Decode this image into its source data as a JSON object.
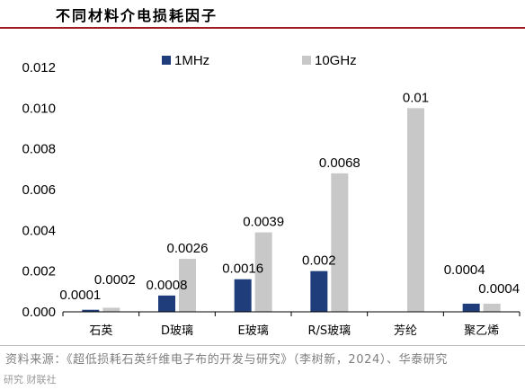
{
  "title": "不同材料介电损耗因子",
  "source": "资料来源：《超低损耗石英纤维电子布的开发与研究》（李树新，2024）、华泰研究",
  "watermark": "研究 财联社",
  "colors": {
    "series_1mhz": "#1f3d7a",
    "series_10ghz": "#c8c8c8",
    "title_rule": "#9e1b1f"
  },
  "chart_data": {
    "type": "bar",
    "categories": [
      "石英",
      "D玻璃",
      "E玻璃",
      "R/S玻璃",
      "芳纶",
      "聚乙烯"
    ],
    "series": [
      {
        "name": "1MHz",
        "values": [
          0.0001,
          0.0008,
          0.0016,
          0.002,
          null,
          0.0004
        ],
        "labels": [
          "0.0001",
          "0.0008",
          "0.0016",
          "0.002",
          "",
          "0.0004"
        ]
      },
      {
        "name": "10GHz",
        "values": [
          0.0002,
          0.0026,
          0.0039,
          0.0068,
          0.01,
          0.0004
        ],
        "labels": [
          "0.0002",
          "0.0026",
          "0.0039",
          "0.0068",
          "0.01",
          "0.0004"
        ]
      }
    ],
    "ylim": [
      0,
      0.012
    ],
    "yticks": [
      "0.000",
      "0.002",
      "0.004",
      "0.006",
      "0.008",
      "0.010",
      "0.012"
    ],
    "grid": false,
    "legend_position": "top-center"
  }
}
